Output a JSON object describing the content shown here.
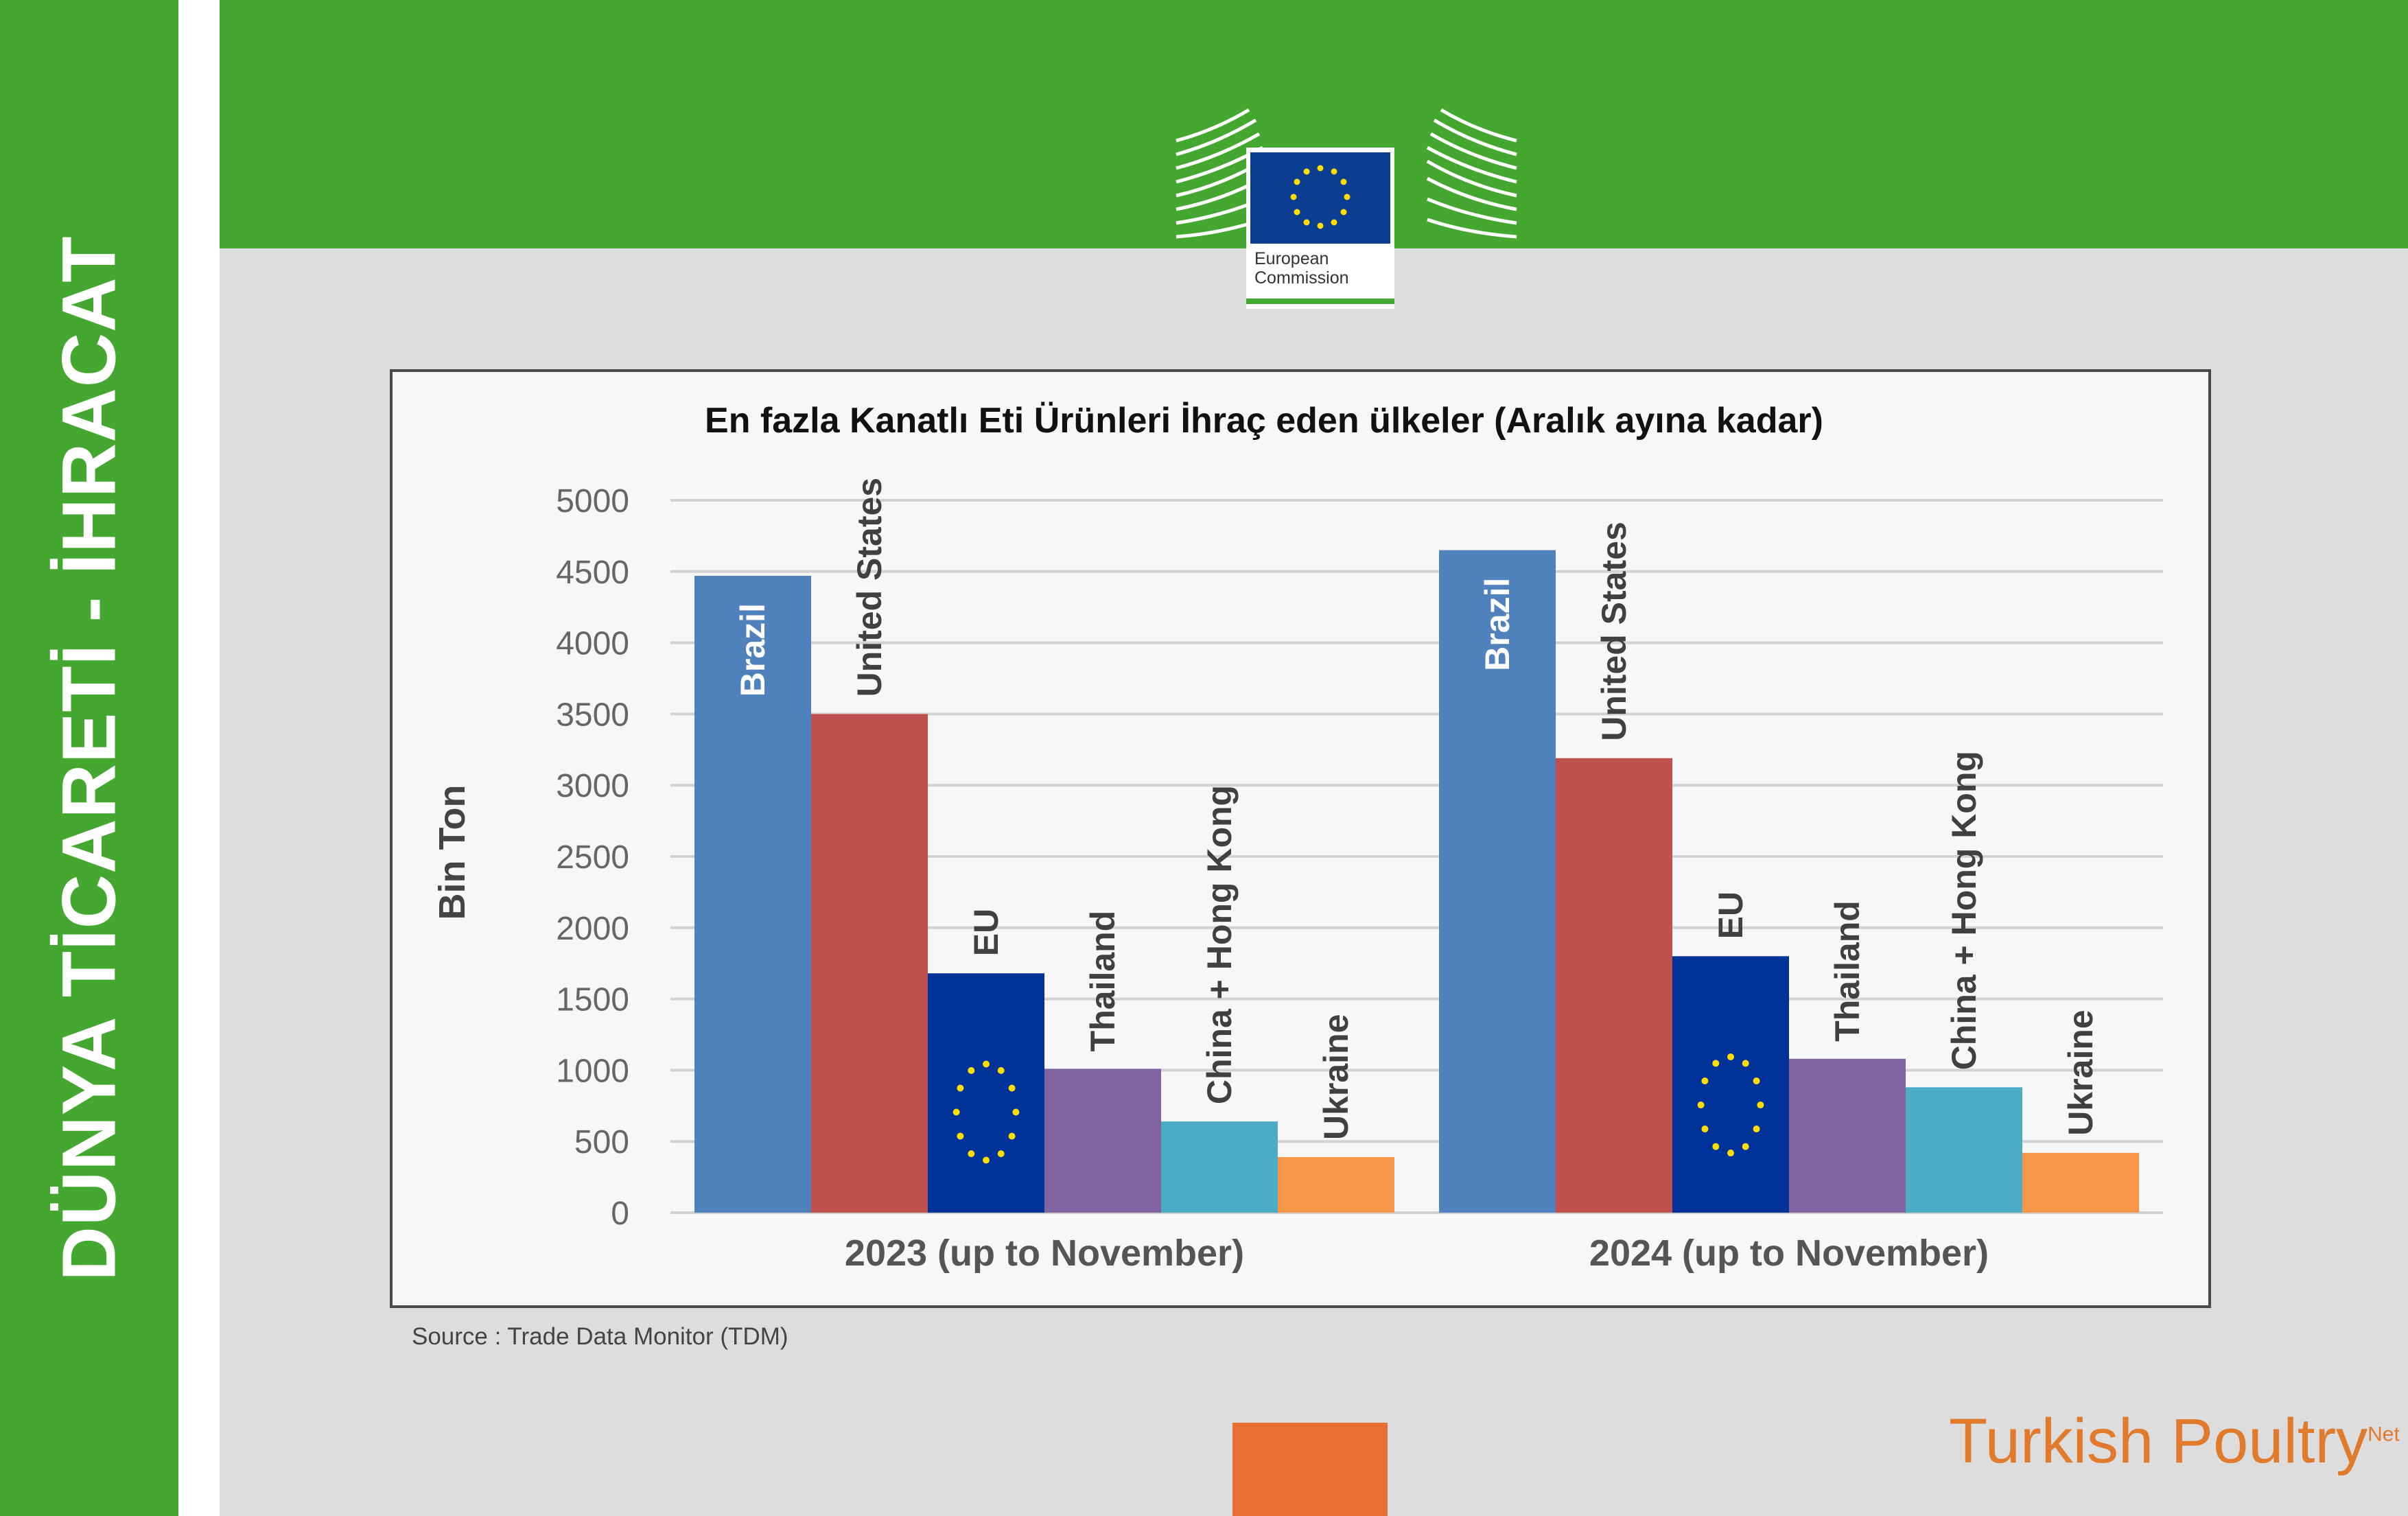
{
  "sidebar": {
    "title": "DÜNYA TİCARETİ - İHRACAT"
  },
  "header_logo": {
    "line1": "European",
    "line2": "Commission",
    "flag_color": "#0b3d91",
    "star_color": "#ffdd00"
  },
  "source": "Source : Trade Data Monitor (TDM)",
  "brand": {
    "name": "Turkish Poultry",
    "suffix": "Net"
  },
  "colors": {
    "green": "#44a72f",
    "orange_block": "#e87033"
  },
  "chart_data": {
    "type": "bar",
    "title": "En fazla Kanatlı Eti Ürünleri İhraç eden ülkeler (Aralık ayına kadar)",
    "ylabel": "Bin Ton",
    "xlabel": "",
    "ylim": [
      0,
      5000
    ],
    "yticks": [
      0,
      500,
      1000,
      1500,
      2000,
      2500,
      3000,
      3500,
      4000,
      4500,
      5000
    ],
    "grid": true,
    "categories": [
      "2023 (up to November)",
      "2024 (up to November)"
    ],
    "series": [
      {
        "name": "Brazil",
        "color": "#4f81bd",
        "values": [
          4470,
          4650
        ]
      },
      {
        "name": "United States",
        "color": "#c0504d",
        "values": [
          3500,
          3190
        ]
      },
      {
        "name": "EU",
        "color": "#003399",
        "values": [
          1680,
          1800
        ]
      },
      {
        "name": "Thailand",
        "color": "#8064a2",
        "values": [
          1010,
          1080
        ]
      },
      {
        "name": "China + Hong Kong",
        "color": "#4bacc6",
        "values": [
          640,
          880
        ]
      },
      {
        "name": "Ukraine",
        "color": "#f79646",
        "values": [
          390,
          420
        ]
      }
    ]
  }
}
